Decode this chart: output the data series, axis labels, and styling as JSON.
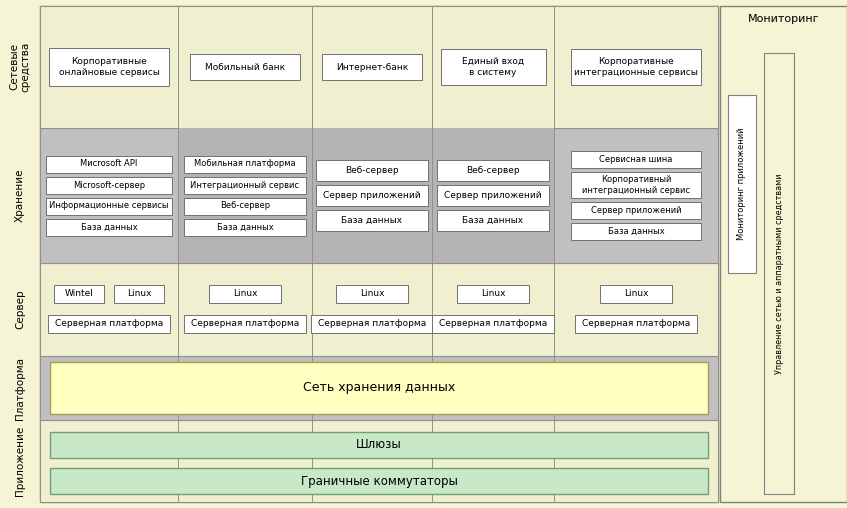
{
  "fig_width": 8.47,
  "fig_height": 5.08,
  "dpi": 100,
  "bg_color": "#f5f5d5",
  "row_bg_light": "#f0f0d0",
  "row_bg_gray": "#c0c0c0",
  "row_bg_gray2": "#b0b0b0",
  "box_fill": "#ffffff",
  "storage_fill": "#fffff0",
  "gateway_fill": "#d0e8d0",
  "monitoring_title": "Мониторинг",
  "monitoring_box1": "Мониторинг приложений",
  "monitoring_box2": "Управление сетью и аппаратными средствами",
  "storage_text": "Сеть хранения данных",
  "gateway_text": "Шлюзы",
  "boundary_text": "Граничные коммутаторы",
  "row_labels": [
    "Приложение",
    "Платформа",
    "Сервер",
    "Хранение",
    "Сетевые\nсредства"
  ],
  "platform_col0": [
    "Миcrosoft API",
    "Мicrosoft-сервер",
    "Информационные сервисы",
    "База данных"
  ],
  "platform_col1": [
    "Мобильная платформа",
    "Интеграционный сервис",
    "Веб-сервер",
    "База данных"
  ],
  "platform_col2": [
    "Веб-сервер",
    "Сервер приложений",
    "База данных"
  ],
  "platform_col3": [
    "Веб-сервер",
    "Сервер приложений",
    "База данных"
  ],
  "platform_col4": [
    "Сервисная шина",
    "Корпоративный\nинтеграционный сервис",
    "Сервер приложений",
    "База данных"
  ]
}
